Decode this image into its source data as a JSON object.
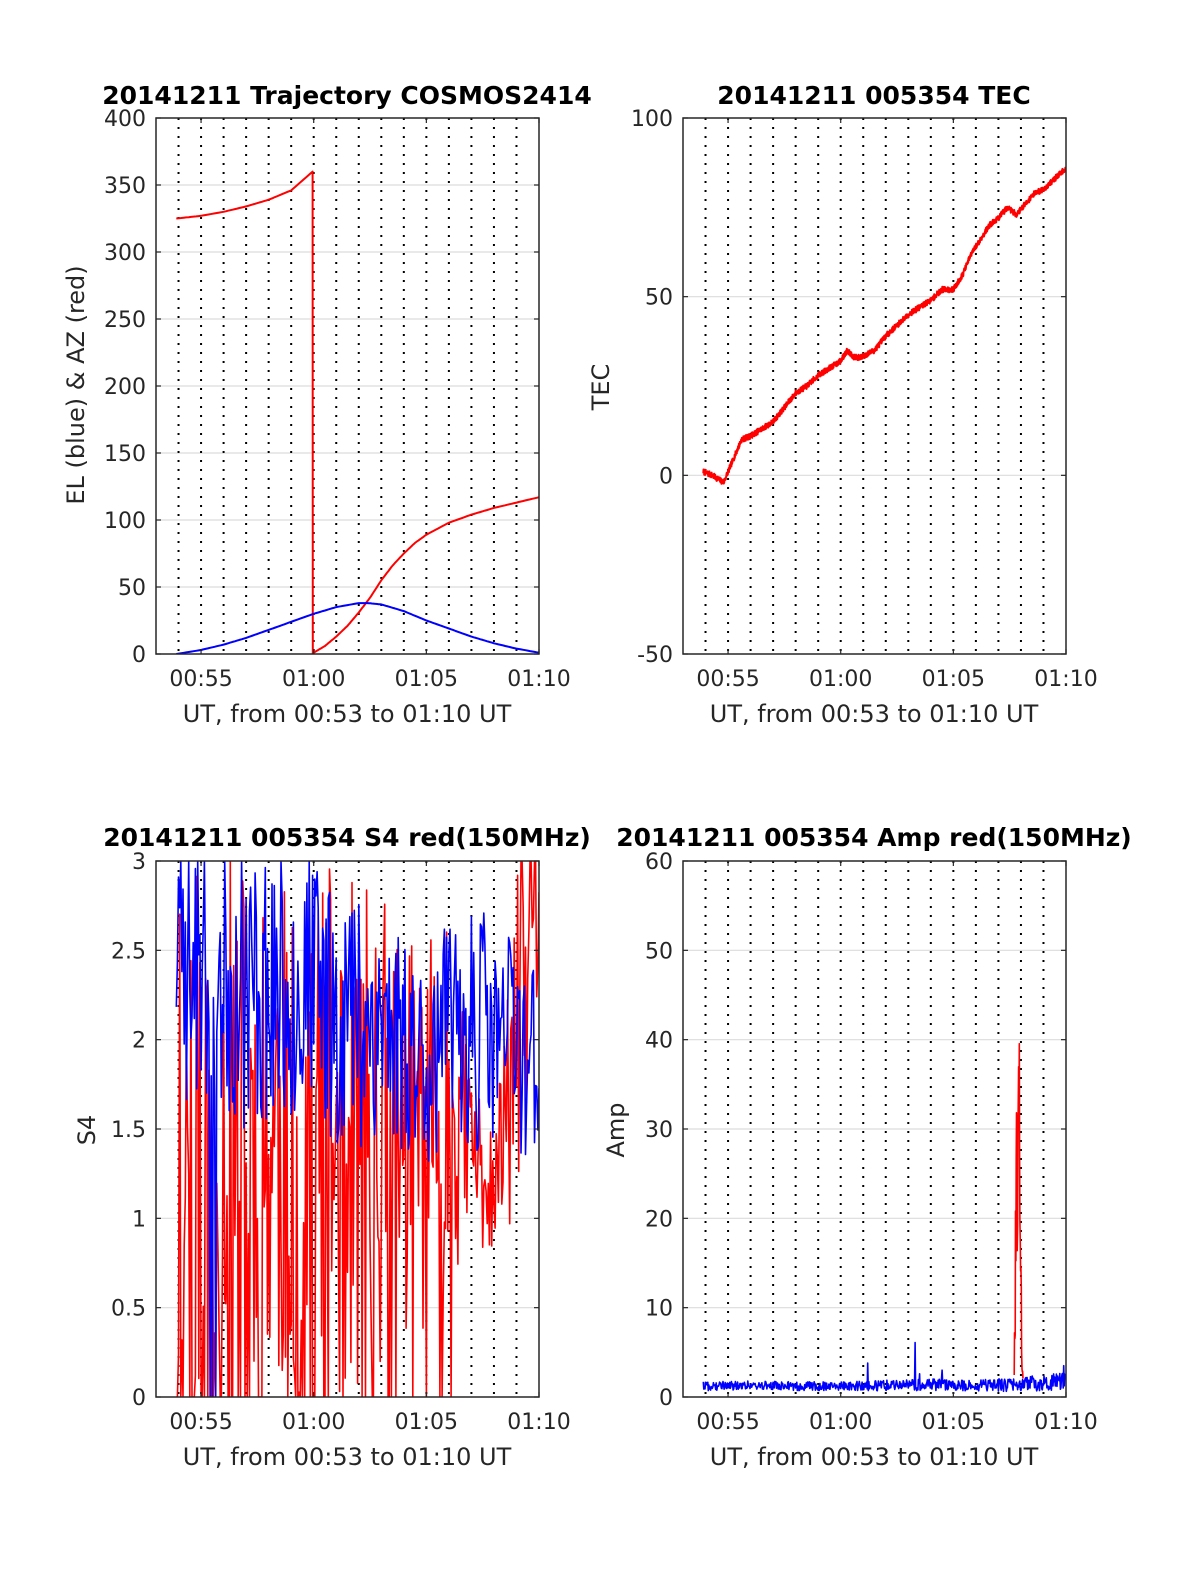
{
  "figure": {
    "background": "#ffffff"
  },
  "colors": {
    "red": "#ff0000",
    "blue": "#0000ff"
  },
  "chart_data": [
    {
      "id": "traj",
      "type": "line",
      "title": "20141211 Trajectory COSMOS2414",
      "xlabel": "UT, from 00:53 to 01:10 UT",
      "ylabel": "EL (blue) & AZ (red)",
      "xlim": [
        53,
        70
      ],
      "ylim": [
        0,
        400
      ],
      "yticks": [
        0,
        50,
        100,
        150,
        200,
        250,
        300,
        350,
        400
      ],
      "xticks": [
        55,
        60,
        65,
        70
      ],
      "xticklabels": [
        "00:55",
        "01:00",
        "01:05",
        "01:10"
      ],
      "grid": true,
      "series": [
        {
          "color": "#ff0000",
          "kind": "smooth",
          "x": [
            53.9,
            55,
            56,
            57,
            58,
            59,
            59.95,
            59.96,
            60,
            60.5,
            61,
            61.5,
            62,
            62.5,
            63,
            63.5,
            64,
            64.5,
            65,
            66,
            67,
            68,
            69,
            70
          ],
          "values": [
            325,
            327,
            330,
            334,
            339,
            346,
            360,
            0,
            1,
            6,
            13,
            21,
            31,
            42,
            55,
            66,
            75,
            83,
            89,
            98,
            104,
            109,
            113,
            117
          ]
        },
        {
          "color": "#0000ff",
          "kind": "smooth",
          "x": [
            53.9,
            55,
            56,
            57,
            58,
            59,
            60,
            61,
            62,
            62.4,
            63,
            64,
            65,
            66,
            67,
            68,
            69,
            70
          ],
          "values": [
            0,
            3,
            7,
            12,
            18,
            24,
            30,
            35,
            38,
            38,
            37,
            32,
            25,
            19,
            13,
            8,
            4,
            1
          ]
        }
      ]
    },
    {
      "id": "tec",
      "type": "line",
      "title": "20141211 005354 TEC",
      "xlabel": "UT, from 00:53 to 01:10 UT",
      "ylabel": "TEC",
      "xlim": [
        53,
        70
      ],
      "ylim": [
        -50,
        100
      ],
      "yticks": [
        -50,
        0,
        50,
        100
      ],
      "xticks": [
        55,
        60,
        65,
        70
      ],
      "xticklabels": [
        "00:55",
        "01:00",
        "01:05",
        "01:10"
      ],
      "grid": true,
      "series": [
        {
          "color": "#ff0000",
          "kind": "noisy",
          "noise": 0.8,
          "seed": 7,
          "x": [
            53.9,
            54.3,
            54.8,
            55.2,
            55.6,
            56.0,
            56.5,
            57.0,
            57.5,
            58.0,
            58.5,
            59.0,
            59.5,
            60.0,
            60.3,
            60.6,
            60.9,
            61.2,
            61.5,
            62.0,
            62.5,
            63.0,
            63.5,
            64.0,
            64.5,
            65.0,
            65.4,
            65.8,
            66.2,
            66.6,
            67.0,
            67.4,
            67.8,
            68.2,
            68.6,
            69.0,
            69.5,
            70.0
          ],
          "values": [
            1,
            0,
            -2,
            4,
            10,
            11,
            13,
            15,
            19,
            23,
            25,
            28,
            30,
            32,
            35,
            33,
            33,
            34,
            35,
            39,
            42,
            45,
            47,
            49,
            52,
            52,
            56,
            62,
            66,
            70,
            72,
            75,
            73,
            76,
            79,
            80,
            83,
            86
          ]
        }
      ]
    },
    {
      "id": "s4",
      "type": "line",
      "title": "20141211 005354 S4 red(150MHz)",
      "xlabel": "UT, from 00:53 to 01:10 UT",
      "ylabel": "S4",
      "xlim": [
        53,
        70
      ],
      "ylim": [
        0,
        3
      ],
      "yticks": [
        0,
        0.5,
        1,
        1.5,
        2,
        2.5,
        3
      ],
      "xticks": [
        55,
        60,
        65,
        70
      ],
      "xticklabels": [
        "00:55",
        "01:00",
        "01:05",
        "01:10"
      ],
      "grid": true,
      "series": [
        {
          "color": "#ff0000",
          "kind": "random",
          "seed": 11,
          "step": 0.05,
          "x": [
            53.9,
            56.0,
            58.0,
            60.0,
            62.0,
            64.0,
            66.0,
            67.0,
            68.0,
            69.0,
            70.0
          ],
          "values": [
            1.6,
            1.5,
            1.4,
            1.5,
            1.4,
            1.5,
            1.6,
            1.4,
            1.1,
            2.0,
            2.8
          ],
          "spread": [
            1.6,
            1.6,
            1.5,
            1.5,
            1.5,
            1.3,
            1.0,
            0.6,
            0.3,
            1.0,
            0.8
          ],
          "zero_prob": [
            0.35,
            0.3,
            0.25,
            0.25,
            0.2,
            0.12,
            0.04,
            0.0,
            0.0,
            0.0,
            0.0
          ]
        },
        {
          "color": "#0000ff",
          "kind": "random",
          "seed": 23,
          "step": 0.05,
          "x": [
            53.9,
            55.0,
            57.0,
            59.0,
            61.0,
            63.0,
            65.0,
            67.0,
            68.0,
            69.0,
            70.0
          ],
          "values": [
            2.4,
            2.4,
            2.3,
            2.3,
            2.2,
            2.1,
            1.9,
            2.1,
            2.0,
            2.0,
            1.9
          ],
          "spread": [
            0.8,
            0.8,
            0.8,
            0.8,
            0.8,
            0.7,
            0.6,
            0.7,
            0.7,
            0.7,
            0.5
          ],
          "zero_prob": [
            0.08,
            0.05,
            0.02,
            0.0,
            0.0,
            0.0,
            0.0,
            0.0,
            0.0,
            0.0,
            0.0
          ]
        }
      ]
    },
    {
      "id": "amp",
      "type": "line",
      "title": "20141211 005354 Amp red(150MHz)",
      "xlabel": "UT, from 00:53 to 01:10 UT",
      "ylabel": "Amp",
      "xlim": [
        53,
        70
      ],
      "ylim": [
        0,
        60
      ],
      "yticks": [
        0,
        10,
        20,
        30,
        40,
        50,
        60
      ],
      "xticks": [
        55,
        60,
        65,
        70
      ],
      "xticklabels": [
        "00:55",
        "01:00",
        "01:05",
        "01:10"
      ],
      "grid": true,
      "series": [
        {
          "color": "#ff0000",
          "kind": "random",
          "seed": 5,
          "step": 0.015,
          "x": [
            67.7,
            67.75,
            67.8,
            67.85,
            67.9,
            67.95,
            68.0,
            68.05,
            68.1
          ],
          "values": [
            2,
            12,
            28,
            22,
            40,
            26,
            14,
            4,
            2
          ],
          "spread": [
            1,
            8,
            6,
            10,
            12,
            10,
            8,
            2,
            1
          ],
          "zero_prob": [
            0,
            0,
            0,
            0,
            0,
            0,
            0,
            0,
            0
          ]
        },
        {
          "color": "#0000ff",
          "kind": "random",
          "seed": 41,
          "step": 0.025,
          "x": [
            53.9,
            56.0,
            58.0,
            60.0,
            62.0,
            64.0,
            66.0,
            68.0,
            70.0
          ],
          "values": [
            1.2,
            1.3,
            1.2,
            1.2,
            1.3,
            1.4,
            1.3,
            1.4,
            1.8
          ],
          "spread": [
            0.5,
            0.5,
            0.5,
            0.5,
            0.6,
            0.7,
            0.6,
            0.8,
            1.0
          ],
          "zero_prob": [
            0,
            0,
            0,
            0,
            0,
            0,
            0,
            0,
            0
          ],
          "spikes": [
            [
              61.2,
              3.8
            ],
            [
              63.3,
              6.1
            ],
            [
              63.5,
              2.6
            ],
            [
              64.5,
              3.0
            ],
            [
              69.9,
              3.5
            ]
          ]
        }
      ]
    }
  ]
}
